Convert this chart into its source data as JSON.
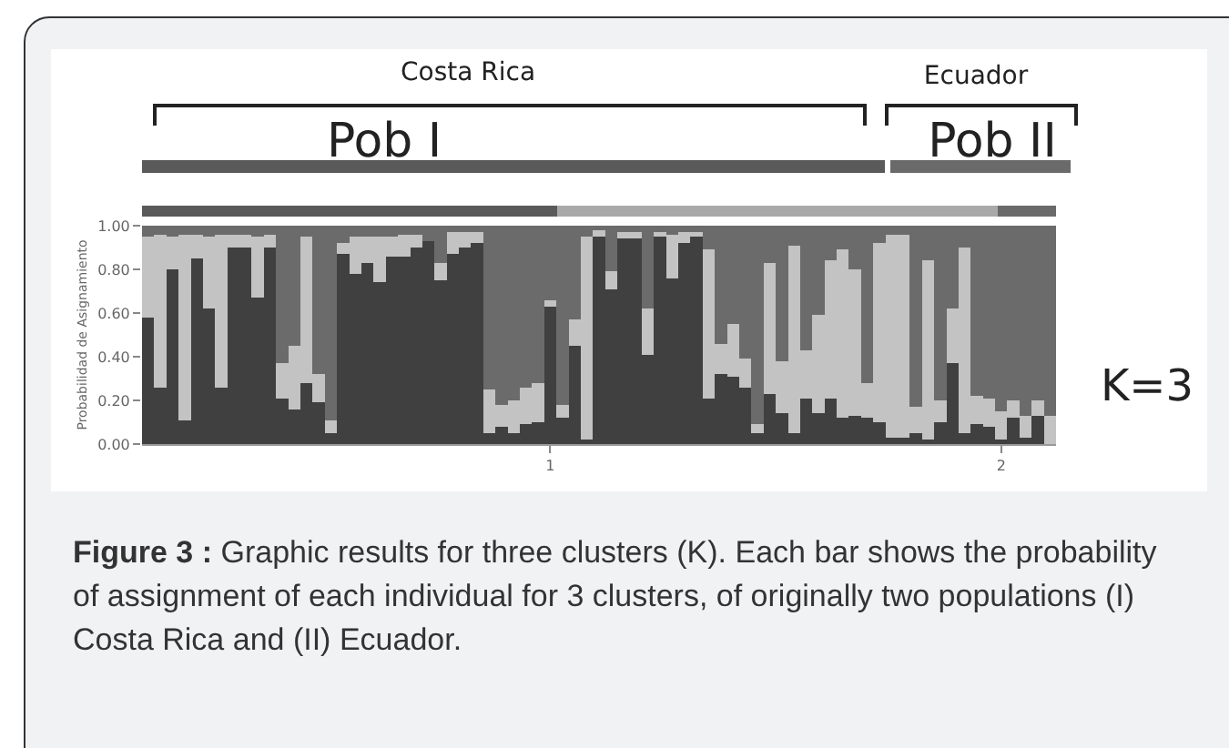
{
  "chart_data": {
    "type": "bar",
    "stacked": true,
    "ylabel": "Probabilidad de Asignamiento",
    "categories": [
      null,
      null,
      null,
      null,
      null,
      null,
      null,
      null,
      null,
      null,
      null,
      null,
      null,
      null,
      null,
      null,
      null,
      null,
      null,
      null,
      null,
      null,
      null,
      null,
      null,
      null,
      null,
      null,
      null,
      null,
      null,
      null,
      null,
      "1",
      null,
      null,
      null,
      null,
      null,
      null,
      null,
      null,
      null,
      null,
      null,
      null,
      null,
      null,
      null,
      null,
      null,
      null,
      null,
      null,
      null,
      null,
      null,
      null,
      null,
      null,
      null,
      null,
      null,
      null,
      null,
      null,
      null,
      null,
      null,
      null,
      "2",
      null,
      null,
      null,
      null
    ],
    "series": [
      {
        "color": "#404040",
        "values": [
          0.58,
          0.26,
          0.8,
          0.11,
          0.85,
          0.62,
          0.26,
          0.9,
          0.9,
          0.67,
          0.9,
          0.21,
          0.16,
          0.28,
          0.19,
          0.05,
          0.87,
          0.78,
          0.83,
          0.74,
          0.86,
          0.86,
          0.9,
          0.93,
          0.75,
          0.87,
          0.9,
          0.92,
          0.05,
          0.08,
          0.05,
          0.09,
          0.1,
          0.63,
          0.12,
          0.45,
          0.02,
          0.95,
          0.71,
          0.94,
          0.94,
          0.41,
          0.95,
          0.76,
          0.92,
          0.95,
          0.21,
          0.32,
          0.31,
          0.26,
          0.05,
          0.23,
          0.14,
          0.05,
          0.21,
          0.14,
          0.21,
          0.12,
          0.13,
          0.12,
          0.1,
          0.03,
          0.03,
          0.05,
          0.02,
          0.1,
          0.37,
          0.05,
          0.09,
          0.08,
          0.02,
          0.12,
          0.03,
          0.13,
          0.0
        ]
      },
      {
        "color": "#c3c3c3",
        "values": [
          0.37,
          0.7,
          0.15,
          0.85,
          0.11,
          0.33,
          0.7,
          0.06,
          0.06,
          0.28,
          0.06,
          0.16,
          0.29,
          0.67,
          0.13,
          0.06,
          0.05,
          0.17,
          0.12,
          0.21,
          0.09,
          0.1,
          0.06,
          0.0,
          0.08,
          0.1,
          0.07,
          0.05,
          0.2,
          0.1,
          0.15,
          0.17,
          0.18,
          0.03,
          0.06,
          0.12,
          0.93,
          0.03,
          0.08,
          0.03,
          0.03,
          0.21,
          0.02,
          0.2,
          0.05,
          0.02,
          0.68,
          0.14,
          0.24,
          0.13,
          0.04,
          0.6,
          0.24,
          0.86,
          0.22,
          0.45,
          0.63,
          0.77,
          0.67,
          0.16,
          0.82,
          0.93,
          0.93,
          0.12,
          0.82,
          0.1,
          0.25,
          0.85,
          0.13,
          0.13,
          0.13,
          0.08,
          0.1,
          0.07,
          0.13
        ]
      },
      {
        "color": "#6b6b6b",
        "values": [
          0.05,
          0.04,
          0.05,
          0.04,
          0.04,
          0.05,
          0.04,
          0.04,
          0.04,
          0.05,
          0.04,
          0.63,
          0.55,
          0.05,
          0.68,
          0.89,
          0.08,
          0.05,
          0.05,
          0.05,
          0.05,
          0.04,
          0.04,
          0.07,
          0.17,
          0.03,
          0.03,
          0.03,
          0.75,
          0.82,
          0.8,
          0.74,
          0.72,
          0.34,
          0.82,
          0.43,
          0.05,
          0.02,
          0.21,
          0.03,
          0.03,
          0.38,
          0.03,
          0.04,
          0.03,
          0.03,
          0.11,
          0.54,
          0.45,
          0.61,
          0.91,
          0.17,
          0.62,
          0.09,
          0.57,
          0.41,
          0.16,
          0.11,
          0.2,
          0.72,
          0.08,
          0.04,
          0.04,
          0.83,
          0.16,
          0.8,
          0.38,
          0.1,
          0.78,
          0.79,
          0.85,
          0.8,
          0.87,
          0.8,
          0.87
        ]
      }
    ],
    "ylim": [
      0,
      1
    ],
    "yticks": [
      {
        "value": 0,
        "label": "0.00"
      },
      {
        "value": 0.2,
        "label": "0.20"
      },
      {
        "value": 0.4,
        "label": "0.40"
      },
      {
        "value": 0.6,
        "label": "0.60"
      },
      {
        "value": 0.8,
        "label": "0.80"
      },
      {
        "value": 1,
        "label": "1.00"
      }
    ],
    "annotations": [
      "Costa Rica",
      "Pob I",
      "Ecuador",
      "Pob II",
      "K=3",
      "Figure 3 :",
      "Graphic results for three clusters (K). Each bar shows the probability of assignment of each individual for 3 clusters, of originally two populations (I) Costa Rica and (II) Ecuador."
    ]
  }
}
